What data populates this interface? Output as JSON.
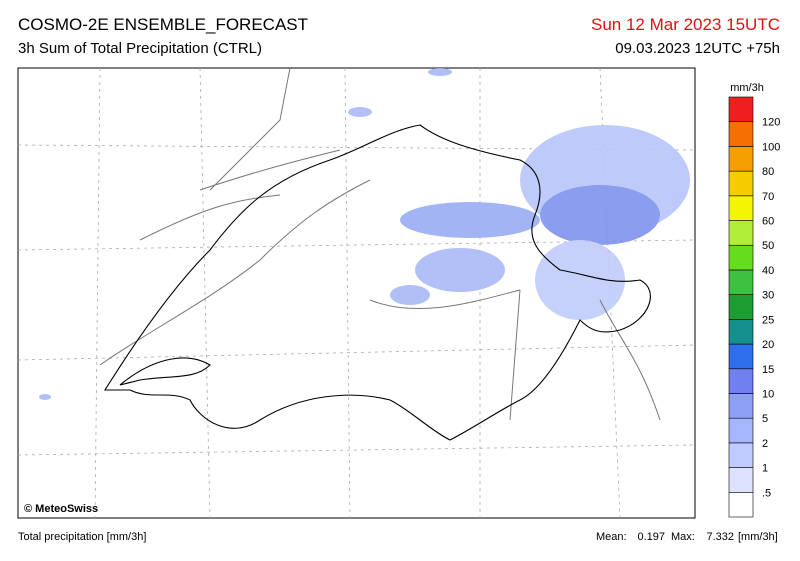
{
  "header": {
    "title": "COSMO-2E ENSEMBLE_FORECAST",
    "subtitle": "3h Sum of Total Precipitation (CTRL)",
    "valid_time": "Sun 12 Mar 2023 15UTC",
    "run": "09.03.2023 12UTC +75h"
  },
  "map": {
    "credit": "© MeteoSwiss"
  },
  "legend": {
    "unit": "mm/3h",
    "labels": [
      ".5",
      "1",
      "2",
      "5",
      "10",
      "15",
      "20",
      "25",
      "30",
      "40",
      "50",
      "60",
      "70",
      "80",
      "100",
      "120"
    ],
    "colors": [
      "#ffffff",
      "#dde3ff",
      "#c0ccff",
      "#a6b6fc",
      "#8ea0f6",
      "#7080ee",
      "#2f6fea",
      "#168f8f",
      "#1e9e32",
      "#40c040",
      "#66dc1e",
      "#b0ee3a",
      "#f5f500",
      "#f5cc00",
      "#f5a000",
      "#f57000",
      "#f01e1e"
    ]
  },
  "footer": {
    "left": "Total precipitation [mm/3h]",
    "mean_label": "Mean:",
    "mean": "0.197",
    "max_label": "Max:",
    "max": "7.332",
    "unit": "[mm/3h]"
  }
}
